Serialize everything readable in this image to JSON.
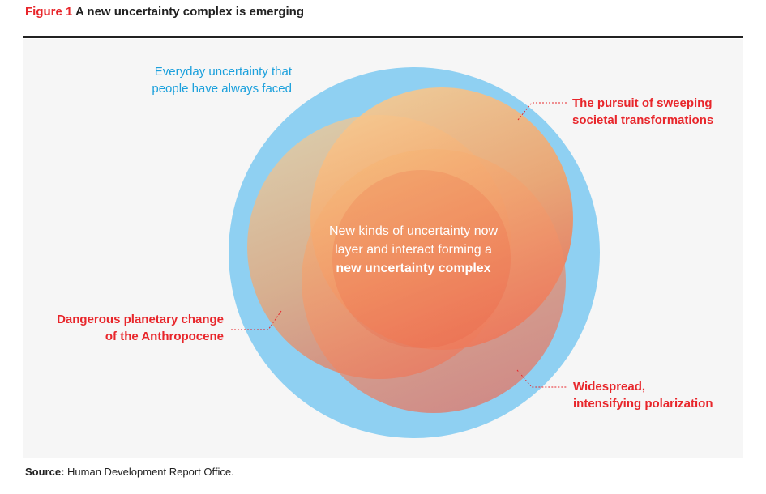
{
  "figure": {
    "number": "Figure 1",
    "title": "A new uncertainty complex is emerging"
  },
  "labels": {
    "everyday": [
      "Everyday uncertainty that",
      "people have always faced"
    ],
    "pursuit": [
      "The pursuit of sweeping",
      "societal transformations"
    ],
    "planetary": [
      "Dangerous planetary change",
      "of the Anthropocene"
    ],
    "polarization": [
      "Widespread,",
      "intensifying polarization"
    ]
  },
  "center_text": {
    "line1": "New kinds of uncertainty now",
    "line2": "layer and interact forming a",
    "bold": "new uncertainty complex"
  },
  "source": {
    "label": "Source:",
    "text": "Human Development Report Office."
  },
  "colors": {
    "blue": "#8fd0f2",
    "label_blue": "#1ba0dc",
    "red": "#e8262b",
    "orange_light": "#f8c98e",
    "orange_dark": "#ea5a3f"
  }
}
